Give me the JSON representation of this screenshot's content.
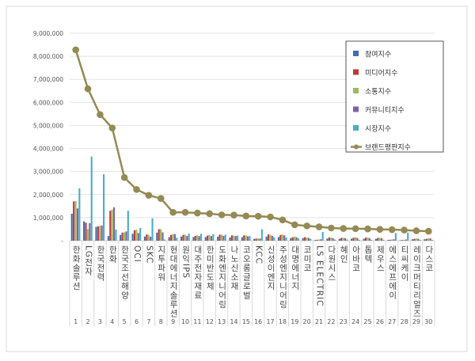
{
  "chart_data": {
    "type": "bar",
    "title": "",
    "xlabel": "",
    "ylabel": "",
    "ylim": [
      0,
      9000000
    ],
    "yticks": [
      "-",
      "1,000,000",
      "2,000,000",
      "3,000,000",
      "4,000,000",
      "5,000,000",
      "6,000,000",
      "7,000,000",
      "8,000,000",
      "9,000,000"
    ],
    "grid": true,
    "legend_position": "top-right",
    "ranks": [
      "1",
      "2",
      "3",
      "4",
      "5",
      "6",
      "7",
      "8",
      "9",
      "10",
      "11",
      "12",
      "13",
      "14",
      "15",
      "16",
      "17",
      "18",
      "19",
      "20",
      "21",
      "22",
      "23",
      "24",
      "25",
      "26",
      "27",
      "28",
      "29",
      "30"
    ],
    "categories": [
      "한화솔루션",
      "LG전자",
      "한국전력",
      "한화",
      "한국조선해양",
      "OCI",
      "SKC",
      "지투파워",
      "현대에너지솔루션",
      "원익IPS",
      "대주전자재료",
      "한미반도체",
      "도화엔지니어링",
      "나노신소재",
      "코오롱글로벌",
      "KCC",
      "신성이엔지",
      "주성엔지니어링",
      "대명에너지",
      "코미코",
      "LS ELECTRIC",
      "다원시스",
      "혜인",
      "아바코",
      "톱텍",
      "제우스",
      "에스에프에이",
      "티씨케이",
      "레이크머티리얼즈",
      "다스코"
    ],
    "series": [
      {
        "name": "참여지수",
        "type": "bar",
        "color": "#3E6DB5",
        "values": [
          1170000,
          840000,
          600000,
          200000,
          250000,
          300000,
          180000,
          350000,
          150000,
          180000,
          160000,
          160000,
          170000,
          140000,
          150000,
          80000,
          180000,
          160000,
          110000,
          110000,
          30000,
          90000,
          80000,
          90000,
          80000,
          80000,
          30000,
          20000,
          60000,
          60000
        ]
      },
      {
        "name": "미디어지수",
        "type": "bar",
        "color": "#BE3A34",
        "values": [
          1700000,
          780000,
          620000,
          1300000,
          350000,
          450000,
          270000,
          500000,
          250000,
          250000,
          210000,
          220000,
          260000,
          230000,
          230000,
          90000,
          270000,
          250000,
          150000,
          150000,
          40000,
          140000,
          120000,
          130000,
          130000,
          120000,
          40000,
          30000,
          80000,
          80000
        ]
      },
      {
        "name": "소통지수",
        "type": "bar",
        "color": "#9BBB59",
        "values": [
          1720000,
          500000,
          640000,
          1350000,
          360000,
          480000,
          250000,
          500000,
          280000,
          260000,
          230000,
          240000,
          260000,
          220000,
          230000,
          100000,
          260000,
          270000,
          180000,
          140000,
          50000,
          130000,
          130000,
          150000,
          140000,
          130000,
          50000,
          40000,
          90000,
          100000
        ]
      },
      {
        "name": "커뮤니티지수",
        "type": "bar",
        "color": "#7E62A1",
        "values": [
          1400000,
          760000,
          660000,
          1450000,
          400000,
          330000,
          170000,
          360000,
          290000,
          200000,
          200000,
          200000,
          210000,
          200000,
          190000,
          90000,
          210000,
          230000,
          150000,
          120000,
          60000,
          110000,
          110000,
          120000,
          110000,
          110000,
          60000,
          50000,
          80000,
          100000
        ]
      },
      {
        "name": "시장지수",
        "type": "bar",
        "color": "#4BACC6",
        "values": [
          2270000,
          3650000,
          2880000,
          480000,
          1300000,
          550000,
          970000,
          50000,
          130000,
          310000,
          300000,
          280000,
          260000,
          220000,
          200000,
          500000,
          150000,
          140000,
          100000,
          80000,
          380000,
          50000,
          50000,
          40000,
          40000,
          40000,
          330000,
          350000,
          40000,
          40000
        ]
      },
      {
        "name": "브랜드평판지수",
        "type": "line",
        "color": "#948A54",
        "values": [
          8280000,
          6590000,
          5470000,
          4890000,
          2740000,
          2220000,
          1970000,
          1830000,
          1230000,
          1230000,
          1200000,
          1170000,
          1120000,
          1110000,
          1070000,
          1060000,
          1030000,
          900000,
          690000,
          640000,
          600000,
          550000,
          530000,
          520000,
          510000,
          490000,
          480000,
          460000,
          430000,
          410000
        ]
      }
    ]
  }
}
